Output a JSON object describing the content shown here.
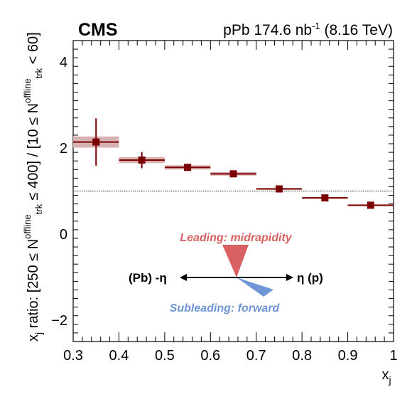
{
  "header": {
    "experiment": "CMS",
    "dataset_prefix": "pPb 174.6 nb",
    "dataset_exp": "-1",
    "dataset_suffix": " (8.16 TeV)"
  },
  "chart_data": {
    "type": "scatter",
    "xlabel": "x",
    "xlabel_sub": "j",
    "ylabel_parts": {
      "a": "x",
      "a_sub": "j",
      "b": " ratio: [250 ≤ N",
      "b_sup": "offline",
      "b_sub": "trk",
      "c": " ≤ 400] / [10 ≤ N",
      "c_sup": "offline",
      "c_sub": "trk",
      "d": " < 60]"
    },
    "xlim": [
      0.3,
      1.0
    ],
    "ylim": [
      -2.5,
      4.5
    ],
    "xticks": [
      "0.3",
      "0.4",
      "0.5",
      "0.6",
      "0.7",
      "0.8",
      "0.9",
      "1"
    ],
    "yticks": [
      "−2",
      "0",
      "2",
      "4"
    ],
    "reference_line": 1,
    "marker_color": "#7b0000",
    "syst_color": "#d8b2b2",
    "points": [
      {
        "x": 0.35,
        "y": 2.14,
        "xerr": 0.05,
        "stat": [
          0.55,
          0.55
        ],
        "syst": 0.13
      },
      {
        "x": 0.45,
        "y": 1.72,
        "xerr": 0.05,
        "stat": [
          0.19,
          0.19
        ],
        "syst": 0.07
      },
      {
        "x": 0.55,
        "y": 1.55,
        "xerr": 0.05,
        "stat": [
          0.07,
          0.07
        ],
        "syst": 0.05
      },
      {
        "x": 0.65,
        "y": 1.4,
        "xerr": 0.05,
        "stat": [
          0.04,
          0.04
        ],
        "syst": 0.04
      },
      {
        "x": 0.75,
        "y": 1.05,
        "xerr": 0.05,
        "stat": [
          0.02,
          0.02
        ],
        "syst": 0.02
      },
      {
        "x": 0.85,
        "y": 0.84,
        "xerr": 0.05,
        "stat": [
          0.02,
          0.02
        ],
        "syst": 0.02
      },
      {
        "x": 0.95,
        "y": 0.67,
        "xerr": 0.05,
        "stat": [
          0.02,
          0.02
        ],
        "syst": 0.02
      }
    ]
  },
  "diagram": {
    "leading_label": "Leading: midrapidity",
    "leading_color": "#d86060",
    "subleading_label": "Subleading: forward",
    "subleading_color": "#6f95d6",
    "left_label": "(Pb) -η",
    "right_label": "η (p)"
  }
}
